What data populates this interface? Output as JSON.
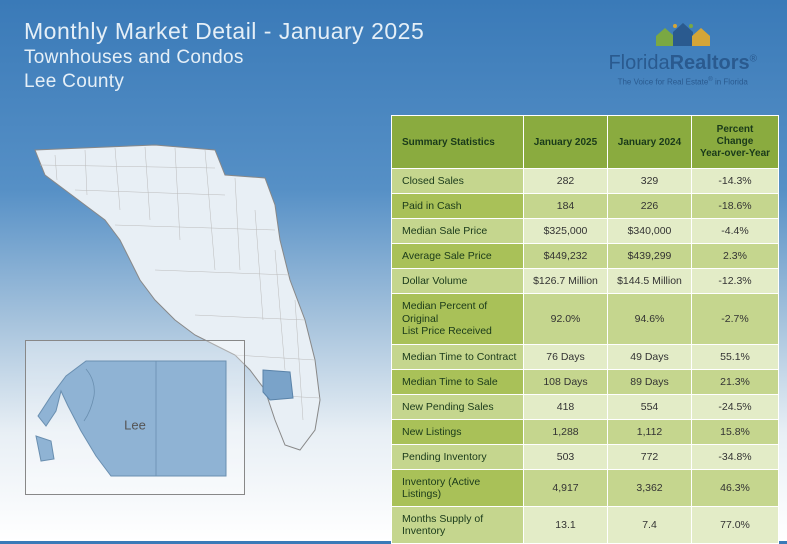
{
  "header": {
    "title": "Monthly Market Detail - January 2025",
    "subtitle": "Townhouses and Condos",
    "region": "Lee County"
  },
  "logo": {
    "brand_part1": "Florida",
    "brand_part2": "Realtors",
    "registered": "®",
    "tagline_part1": "The Voice for Real Estate",
    "tagline_part2": "in Florida"
  },
  "map": {
    "inset_label": "Lee",
    "highlight_color": "#7aa3c9",
    "state_fill": "#e8eff5",
    "state_stroke": "#888888"
  },
  "table": {
    "header_bg": "#8aab3f",
    "row_light": "#e3ecc7",
    "row_dark": "#c5d68e",
    "label_light": "#c5d68e",
    "label_dark": "#a9c158",
    "columns": [
      "Summary Statistics",
      "January 2025",
      "January 2024",
      "Percent Change\nYear-over-Year"
    ],
    "rows": [
      {
        "label": "Closed Sales",
        "current": "282",
        "prior": "329",
        "change": "-14.3%"
      },
      {
        "label": "Paid in Cash",
        "current": "184",
        "prior": "226",
        "change": "-18.6%"
      },
      {
        "label": "Median Sale Price",
        "current": "$325,000",
        "prior": "$340,000",
        "change": "-4.4%"
      },
      {
        "label": "Average Sale Price",
        "current": "$449,232",
        "prior": "$439,299",
        "change": "2.3%"
      },
      {
        "label": "Dollar Volume",
        "current": "$126.7 Million",
        "prior": "$144.5 Million",
        "change": "-12.3%"
      },
      {
        "label": "Median Percent of Original\nList Price Received",
        "current": "92.0%",
        "prior": "94.6%",
        "change": "-2.7%"
      },
      {
        "label": "Median Time to Contract",
        "current": "76 Days",
        "prior": "49 Days",
        "change": "55.1%"
      },
      {
        "label": "Median Time to Sale",
        "current": "108 Days",
        "prior": "89 Days",
        "change": "21.3%"
      },
      {
        "label": "New Pending Sales",
        "current": "418",
        "prior": "554",
        "change": "-24.5%"
      },
      {
        "label": "New Listings",
        "current": "1,288",
        "prior": "1,112",
        "change": "15.8%"
      },
      {
        "label": "Pending Inventory",
        "current": "503",
        "prior": "772",
        "change": "-34.8%"
      },
      {
        "label": "Inventory (Active Listings)",
        "current": "4,917",
        "prior": "3,362",
        "change": "46.3%"
      },
      {
        "label": "Months Supply of Inventory",
        "current": "13.1",
        "prior": "7.4",
        "change": "77.0%"
      }
    ]
  }
}
